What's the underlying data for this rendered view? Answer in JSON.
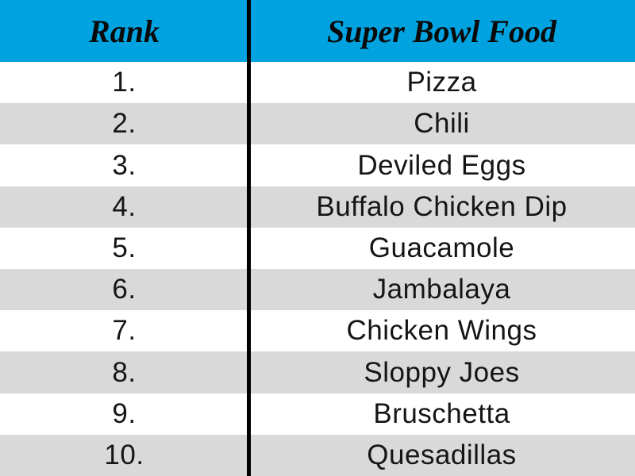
{
  "table": {
    "columns": [
      {
        "label": "Rank"
      },
      {
        "label": "Super Bowl Food"
      }
    ],
    "rows": [
      {
        "rank": "1.",
        "food": "Pizza"
      },
      {
        "rank": "2.",
        "food": "Chili"
      },
      {
        "rank": "3.",
        "food": "Deviled Eggs"
      },
      {
        "rank": "4.",
        "food": "Buffalo Chicken Dip"
      },
      {
        "rank": "5.",
        "food": "Guacamole"
      },
      {
        "rank": "6.",
        "food": "Jambalaya"
      },
      {
        "rank": "7.",
        "food": "Chicken Wings"
      },
      {
        "rank": "8.",
        "food": "Sloppy Joes"
      },
      {
        "rank": "9.",
        "food": "Bruschetta"
      },
      {
        "rank": "10.",
        "food": "Quesadillas"
      }
    ]
  },
  "colors": {
    "header_bg": "#00A3E0",
    "row_alt_bg": "#D9D9D9",
    "divider": "#000000",
    "text": "#151515"
  }
}
